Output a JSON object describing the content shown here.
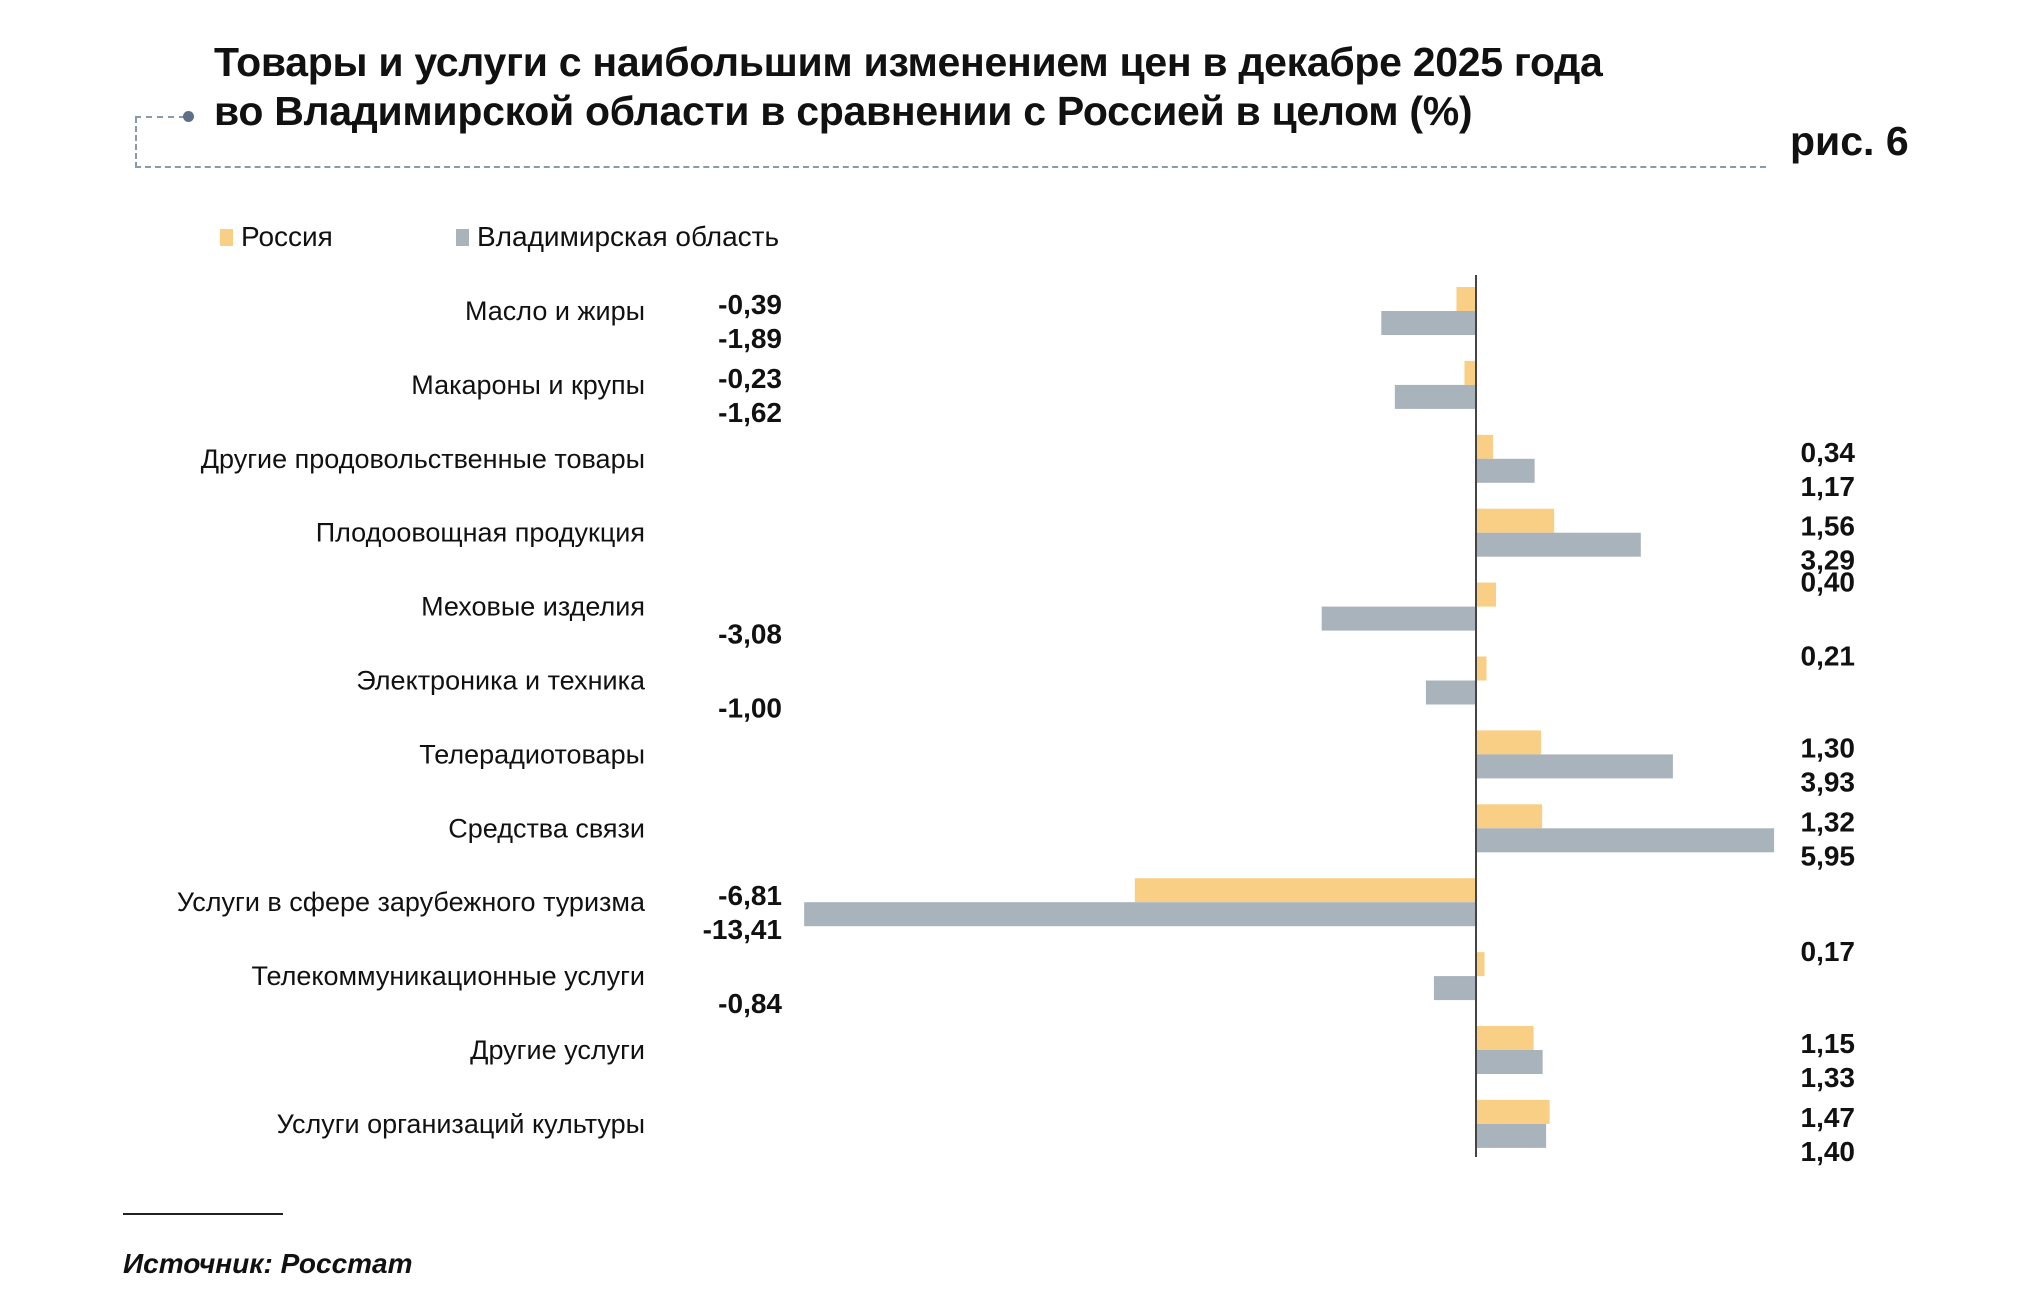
{
  "header": {
    "title_line1": "Товары и услуги с наибольшим изменением цен в декабре 2025 года",
    "title_line2": "во Владимирской области в сравнении с Россией в целом (%)",
    "figure_label": "рис. 6"
  },
  "footer": {
    "source": "Источник: Росстат"
  },
  "chart_data": {
    "type": "bar",
    "orientation": "horizontal",
    "title": "Товары и услуги с наибольшим изменением цен в декабре 2025 года во Владимирской области в сравнении с Россией в целом (%)",
    "legend_position": "top-left",
    "grid": false,
    "categories": [
      "Масло и жиры",
      "Макароны и крупы",
      "Другие продовольственные товары",
      "Плодоовощная продукция",
      "Меховые изделия",
      "Электроника и техника",
      "Телерадиотовары",
      "Средства связи",
      "Услуги в сфере зарубежного туризма",
      "Телекоммуникационные услуги",
      "Другие услуги",
      "Услуги организаций культуры"
    ],
    "series": [
      {
        "name": "Россия",
        "color": "#F9CF86",
        "values": [
          -0.39,
          -0.23,
          0.34,
          1.56,
          0.4,
          0.21,
          1.3,
          1.32,
          -6.81,
          0.17,
          1.15,
          1.47
        ],
        "labels": [
          "-0,39",
          "-0,23",
          "0,34",
          "1,56",
          "0,40",
          "0,21",
          "1,30",
          "1,32",
          "-6,81",
          "0,17",
          "1,15",
          "1,47"
        ]
      },
      {
        "name": "Владимирская область",
        "color": "#A9B3BC",
        "values": [
          -1.89,
          -1.62,
          1.17,
          3.29,
          -3.08,
          -1.0,
          3.93,
          5.95,
          -13.41,
          -0.84,
          1.33,
          1.4
        ],
        "labels": [
          "-1,89",
          "-1,62",
          "1,17",
          "3,29",
          "-3,08",
          "-1,00",
          "3,93",
          "5,95",
          "-13,41",
          "-0,84",
          "1,33",
          "1,40"
        ]
      }
    ]
  }
}
